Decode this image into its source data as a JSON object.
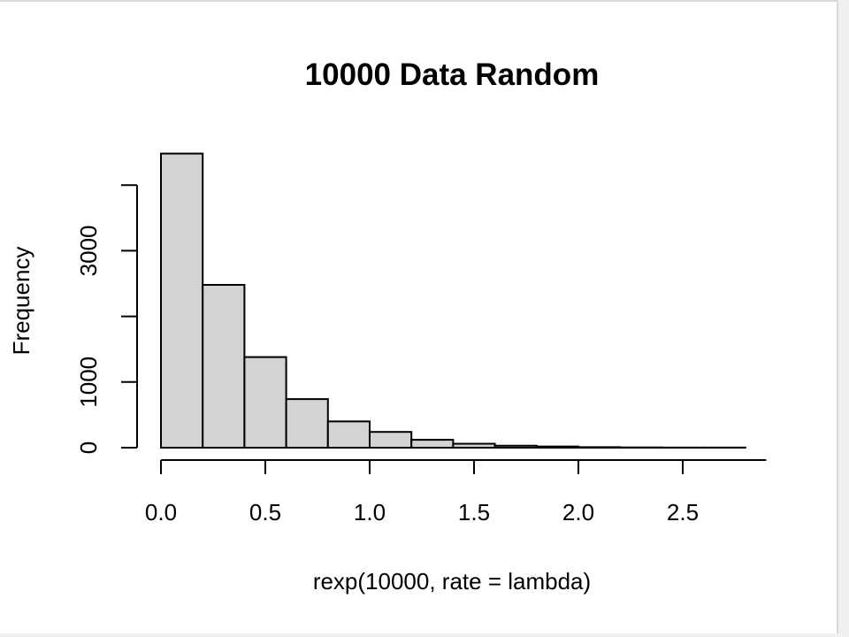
{
  "chart_data": {
    "type": "bar",
    "title": "10000 Data Random",
    "xlabel": "rexp(10000, rate = lambda)",
    "ylabel": "Frequency",
    "bin_edges": [
      0.0,
      0.2,
      0.4,
      0.6,
      0.8,
      1.0,
      1.2,
      1.4,
      1.6,
      1.8,
      2.0,
      2.2,
      2.4,
      2.6,
      2.8
    ],
    "values": [
      4480,
      2480,
      1380,
      740,
      400,
      240,
      120,
      60,
      30,
      18,
      8,
      4,
      2,
      2
    ],
    "xlim": [
      0.0,
      2.9
    ],
    "ylim": [
      0,
      4000
    ],
    "x_ticks": [
      0.0,
      0.5,
      1.0,
      1.5,
      2.0,
      2.5
    ],
    "x_tick_labels": [
      "0.0",
      "0.5",
      "1.0",
      "1.5",
      "2.0",
      "2.5"
    ],
    "y_ticks": [
      0,
      1000,
      2000,
      3000,
      4000
    ],
    "y_tick_labels": [
      "0",
      "1000",
      "",
      "3000",
      ""
    ],
    "bar_fill": "#d3d3d3",
    "bar_stroke": "#000000",
    "grid": false
  }
}
